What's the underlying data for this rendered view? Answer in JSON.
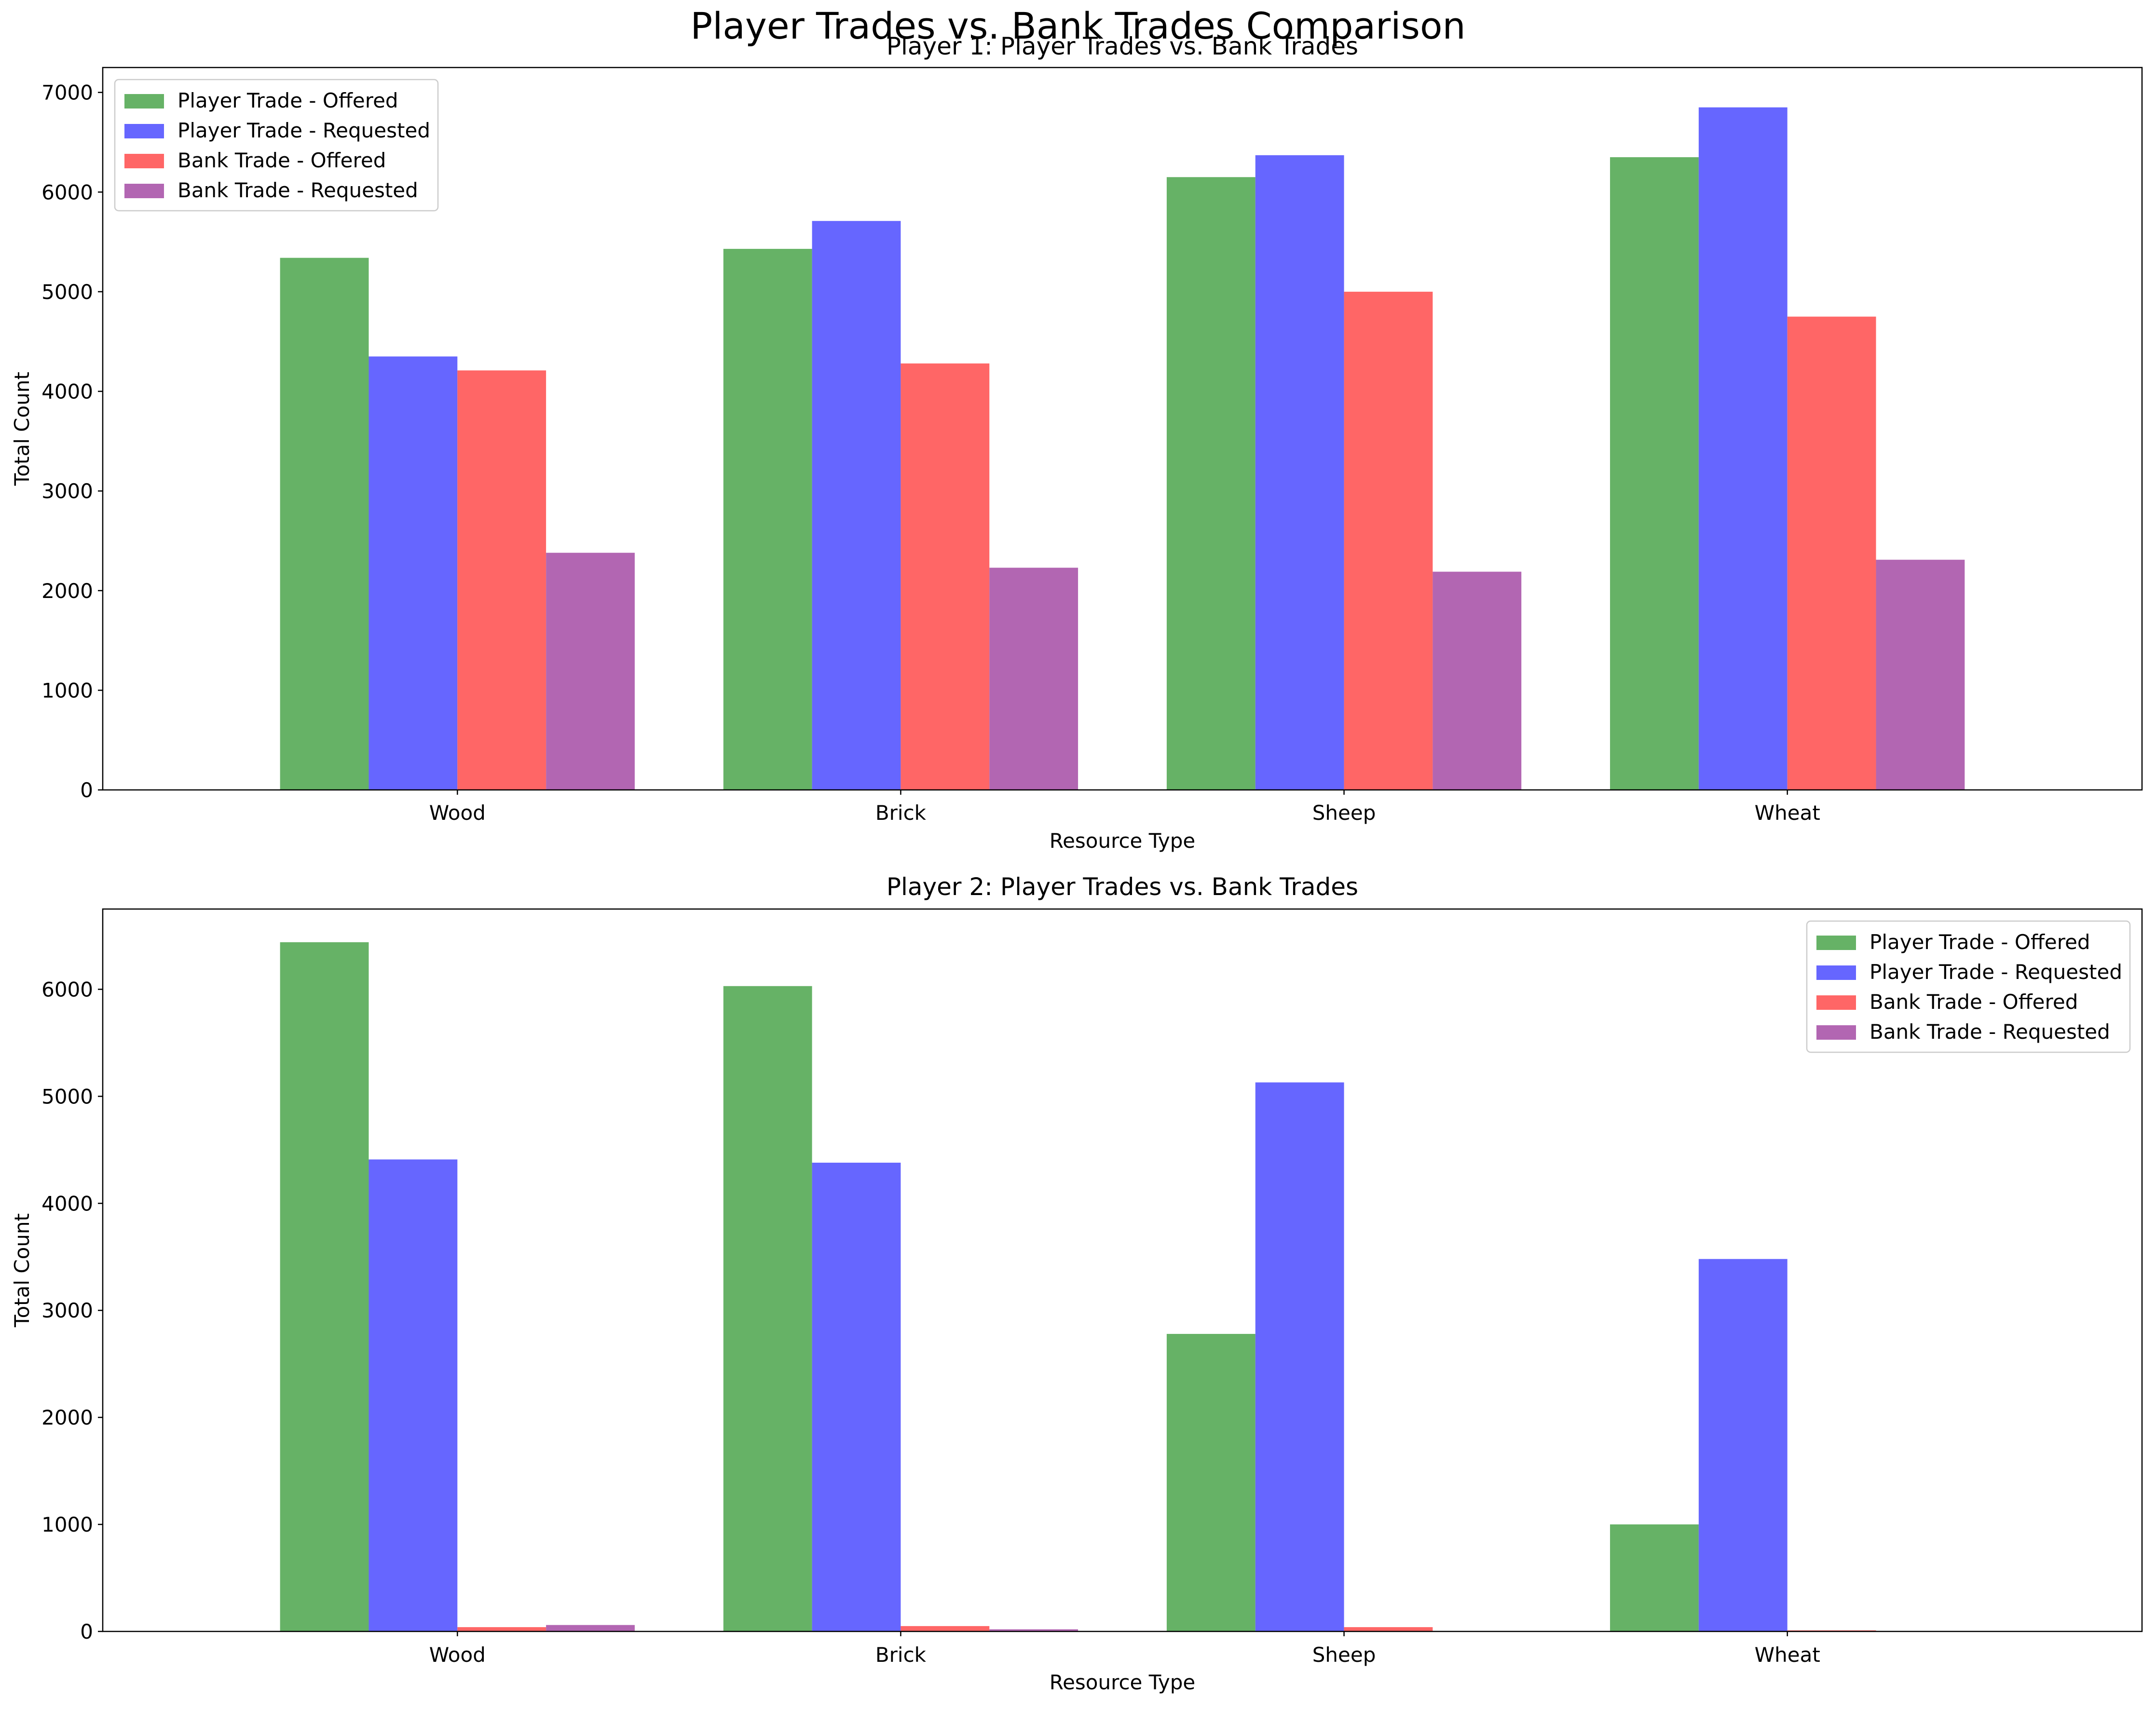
{
  "figure": {
    "suptitle": "Player Trades vs. Bank Trades Comparison"
  },
  "chart_data": [
    {
      "type": "bar",
      "title": "Player 1: Player Trades vs. Bank Trades",
      "xlabel": "Resource Type",
      "ylabel": "Total Count",
      "categories": [
        "Wood",
        "Brick",
        "Sheep",
        "Wheat"
      ],
      "ylim": [
        0,
        7250
      ],
      "yticks": [
        0,
        1000,
        2000,
        3000,
        4000,
        5000,
        6000,
        7000
      ],
      "grid": false,
      "legend_position": "upper-left",
      "series": [
        {
          "name": "Player Trade - Offered",
          "color": "#66b266",
          "values": [
            5340,
            5430,
            6150,
            6350
          ]
        },
        {
          "name": "Player Trade - Requested",
          "color": "#6666ff",
          "values": [
            4350,
            5710,
            6370,
            6850
          ]
        },
        {
          "name": "Bank Trade - Offered",
          "color": "#ff6666",
          "values": [
            4210,
            4280,
            5000,
            4750
          ]
        },
        {
          "name": "Bank Trade - Requested",
          "color": "#b266b2",
          "values": [
            2380,
            2230,
            2190,
            2310
          ]
        }
      ]
    },
    {
      "type": "bar",
      "title": "Player 2: Player Trades vs. Bank Trades",
      "xlabel": "Resource Type",
      "ylabel": "Total Count",
      "categories": [
        "Wood",
        "Brick",
        "Sheep",
        "Wheat"
      ],
      "ylim": [
        0,
        6750
      ],
      "yticks": [
        0,
        1000,
        2000,
        3000,
        4000,
        5000,
        6000
      ],
      "grid": false,
      "legend_position": "upper-right",
      "series": [
        {
          "name": "Player Trade - Offered",
          "color": "#66b266",
          "values": [
            6440,
            6030,
            2780,
            1000
          ]
        },
        {
          "name": "Player Trade - Requested",
          "color": "#6666ff",
          "values": [
            4410,
            4380,
            5130,
            3480
          ]
        },
        {
          "name": "Bank Trade - Offered",
          "color": "#ff6666",
          "values": [
            40,
            50,
            40,
            10
          ]
        },
        {
          "name": "Bank Trade - Requested",
          "color": "#b266b2",
          "values": [
            60,
            20,
            0,
            0
          ]
        }
      ]
    }
  ]
}
